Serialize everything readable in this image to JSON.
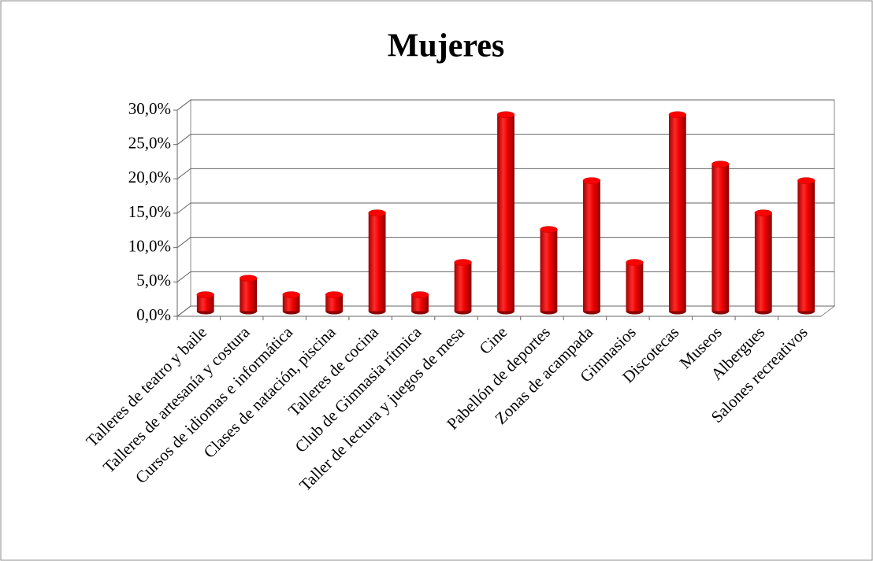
{
  "chart_data": {
    "type": "bar3d",
    "title": "Mujeres",
    "categories": [
      "Talleres de teatro  y baile",
      "Talleres de artesanía y costura",
      "Cursos de idiomas e informática",
      "Clases de natación, piscina",
      "Talleres de cocina",
      "Club de Gimnasia rítmica",
      "Taller de lectura y juegos de mesa",
      "Cine",
      "Pabellón de deportes",
      "Zonas de acampada",
      "Gimnasios",
      "Discotecas",
      "Museos",
      "Albergues",
      "Salones recreativos"
    ],
    "values": [
      2.4,
      4.8,
      2.4,
      2.4,
      14.3,
      2.4,
      7.1,
      28.6,
      11.9,
      19.0,
      7.1,
      28.6,
      21.4,
      14.3,
      19.0
    ],
    "color": "#ff0000",
    "ylim": [
      0,
      30
    ],
    "yticks": [
      {
        "value": 0,
        "label": "0,0%"
      },
      {
        "value": 5,
        "label": "5,0%"
      },
      {
        "value": 10,
        "label": "10,0%"
      },
      {
        "value": 15,
        "label": "15,0%"
      },
      {
        "value": 20,
        "label": "20,0%"
      },
      {
        "value": 25,
        "label": "25,0%"
      },
      {
        "value": 30,
        "label": "30,0%"
      }
    ],
    "grid": true
  }
}
